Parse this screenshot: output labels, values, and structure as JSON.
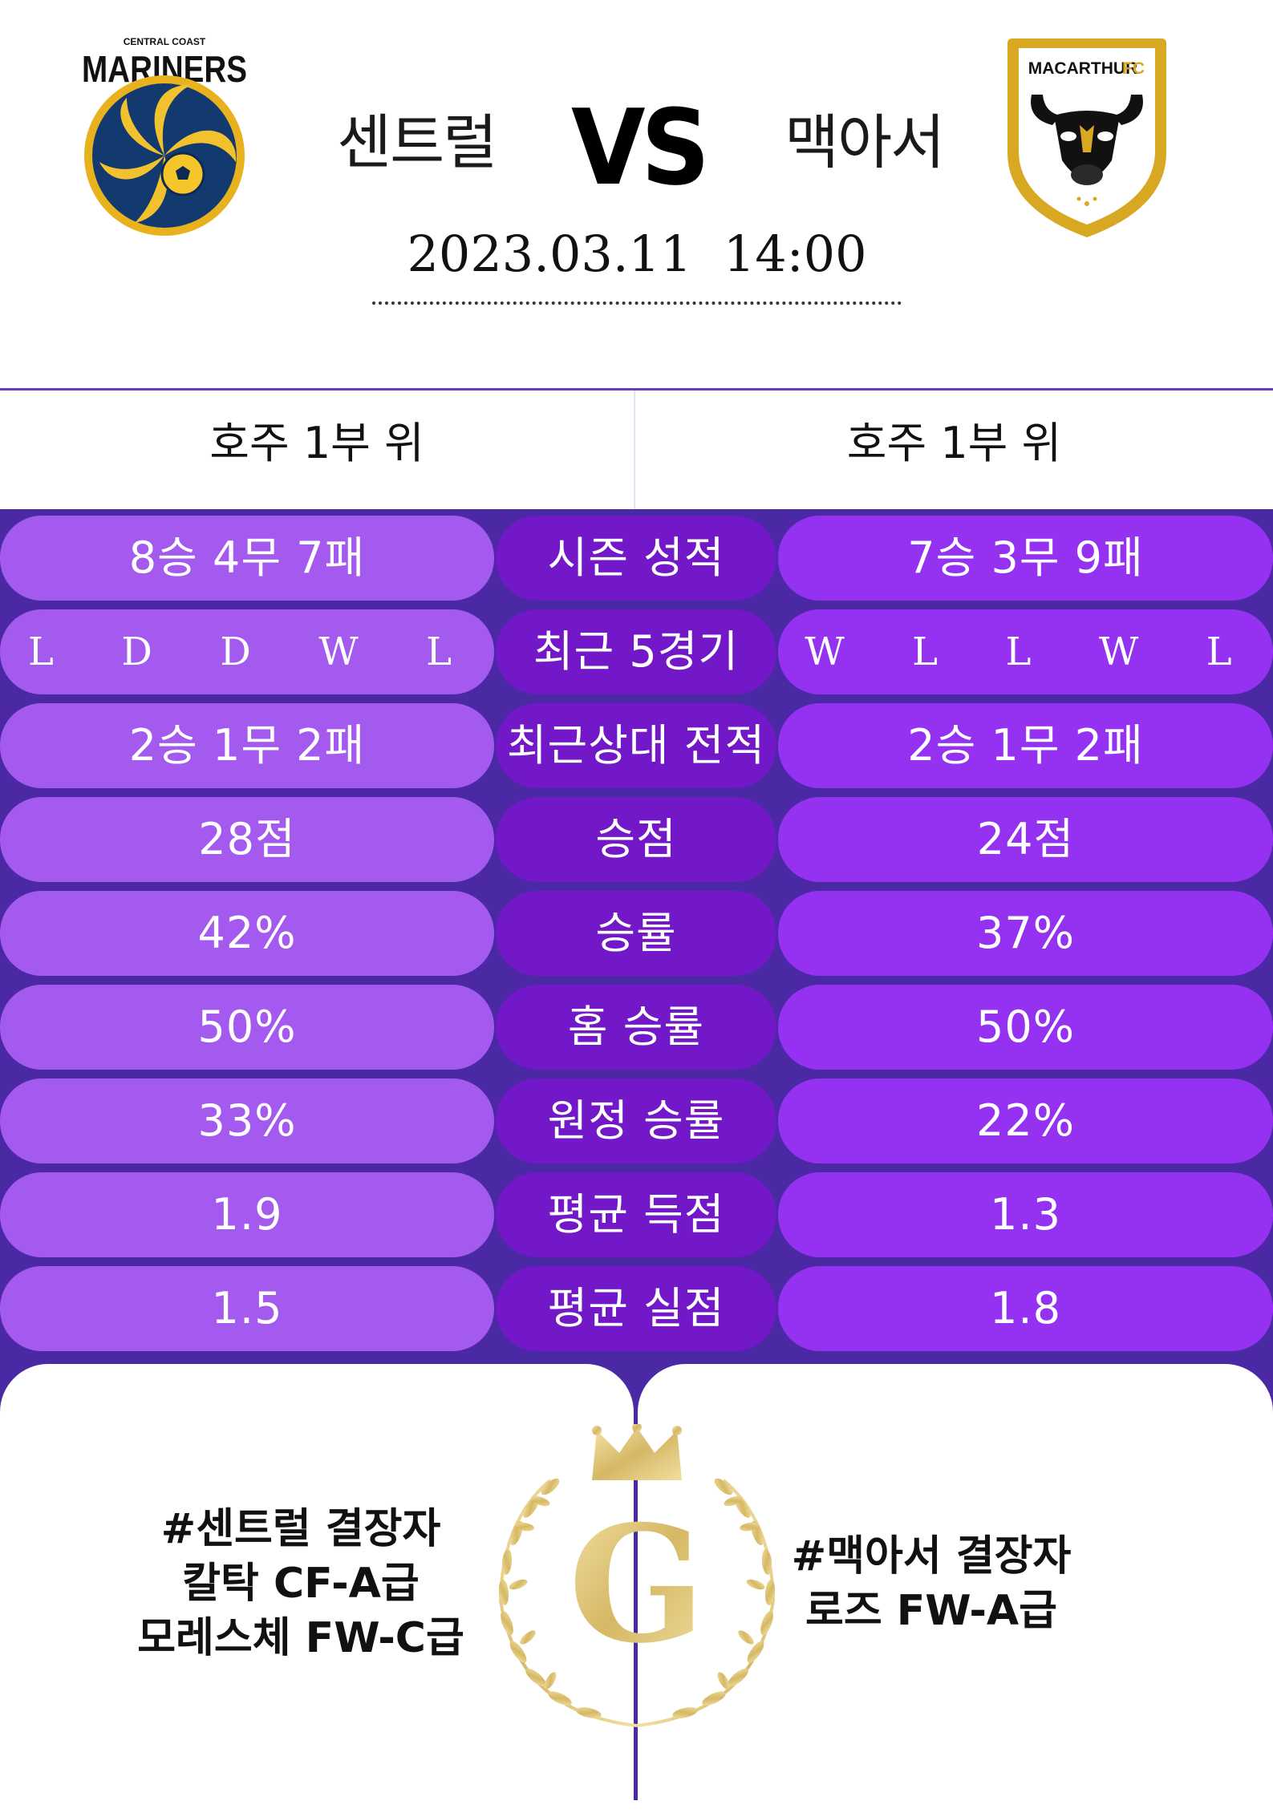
{
  "header": {
    "home_team": "센트럴",
    "away_team": "맥아서",
    "vs": "VS",
    "date_time": "2023.03.11  14:00",
    "home_logo_text": "MARINERS",
    "home_logo_small": "CENTRAL COAST",
    "away_logo_text": "MACARTHUR",
    "away_logo_fc": "FC"
  },
  "rank": {
    "home": "호주 1부 위",
    "away": "호주 1부 위"
  },
  "stats": [
    {
      "home": "8승 4무 7패",
      "label": "시즌 성적",
      "away": "7승 3무 9패"
    },
    {
      "home": "L  D  D  W  L",
      "label": "최근 5경기",
      "away": "W  L  L  W  L"
    },
    {
      "home": "2승 1무 2패",
      "label": "최근상대 전적",
      "away": "2승 1무 2패"
    },
    {
      "home": "28점",
      "label": "승점",
      "away": "24점"
    },
    {
      "home": "42%",
      "label": "승률",
      "away": "37%"
    },
    {
      "home": "50%",
      "label": "홈 승률",
      "away": "50%"
    },
    {
      "home": "33%",
      "label": "원정 승률",
      "away": "22%"
    },
    {
      "home": "1.9",
      "label": "평균 득점",
      "away": "1.3"
    },
    {
      "home": "1.5",
      "label": "평균 실점",
      "away": "1.8"
    }
  ],
  "absentees": {
    "home": [
      "#센트럴 결장자",
      "칼탁 CF-A급",
      "모레스체 FW-C급"
    ],
    "away": [
      "#맥아서 결장자",
      "로즈 FW-A급"
    ]
  },
  "emblem": {
    "letter": "G"
  },
  "colors": {
    "background_purple": "#4b28a4",
    "pill_left": "#a45aee",
    "pill_mid": "#7218c8",
    "pill_right": "#9532f2",
    "gold": "#d9c27a"
  }
}
